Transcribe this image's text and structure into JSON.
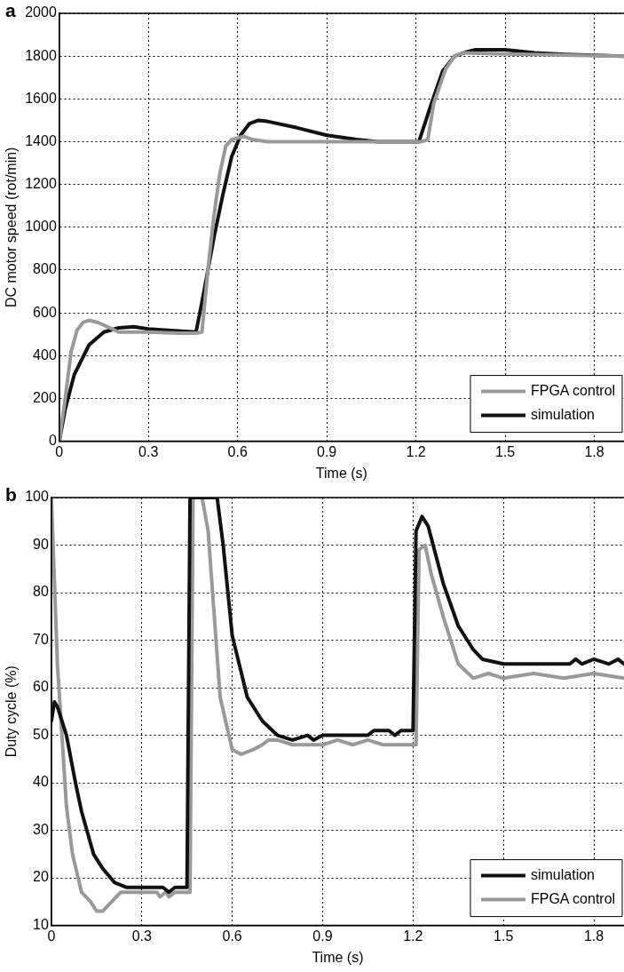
{
  "chart_data": [
    {
      "type": "line",
      "title": "a",
      "xlabel": "Time (s)",
      "ylabel": "DC motor speed (rot/min)",
      "xlim": [
        0,
        1.9
      ],
      "xticks": [
        0,
        0.3,
        0.6,
        0.9,
        1.2,
        1.5,
        1.8
      ],
      "ylim": [
        0,
        2000
      ],
      "yticks": [
        0,
        200,
        400,
        600,
        800,
        1000,
        1200,
        1400,
        1600,
        1800,
        2000
      ],
      "grid": true,
      "legend": "bottom right",
      "line_style": "solid",
      "marker": "none",
      "series": [
        {
          "name": "FPGA control",
          "color": "#999999",
          "x": [
            0,
            0.02,
            0.04,
            0.06,
            0.08,
            0.1,
            0.13,
            0.17,
            0.2,
            0.3,
            0.4,
            0.46,
            0.48,
            0.5,
            0.52,
            0.54,
            0.56,
            0.58,
            0.62,
            0.65,
            0.7,
            0.9,
            1.0,
            1.22,
            1.24,
            1.26,
            1.3,
            1.33,
            1.36,
            1.5,
            1.7,
            1.9
          ],
          "values": [
            0,
            200,
            420,
            520,
            555,
            565,
            555,
            530,
            510,
            510,
            505,
            505,
            510,
            800,
            1050,
            1250,
            1380,
            1410,
            1425,
            1410,
            1400,
            1400,
            1400,
            1400,
            1410,
            1580,
            1740,
            1800,
            1815,
            1810,
            1805,
            1800
          ]
        },
        {
          "name": "simulation",
          "color": "#111111",
          "x": [
            0,
            0.02,
            0.05,
            0.1,
            0.15,
            0.2,
            0.25,
            0.3,
            0.4,
            0.46,
            0.48,
            0.52,
            0.55,
            0.58,
            0.61,
            0.64,
            0.67,
            0.7,
            0.8,
            0.9,
            1.0,
            1.07,
            1.21,
            1.25,
            1.29,
            1.33,
            1.37,
            1.4,
            1.5,
            1.6,
            1.7,
            1.9
          ],
          "values": [
            0,
            150,
            310,
            450,
            510,
            530,
            535,
            525,
            515,
            510,
            650,
            950,
            1150,
            1330,
            1430,
            1485,
            1500,
            1495,
            1465,
            1430,
            1410,
            1400,
            1400,
            1570,
            1730,
            1800,
            1820,
            1830,
            1830,
            1815,
            1808,
            1800
          ]
        }
      ]
    },
    {
      "type": "line",
      "title": "b",
      "xlabel": "Time (s)",
      "ylabel": "Duty cycle (%)",
      "xlim": [
        0,
        1.9
      ],
      "xticks": [
        0,
        0.3,
        0.6,
        0.9,
        1.2,
        1.5,
        1.8
      ],
      "ylim": [
        10,
        100
      ],
      "yticks": [
        10,
        20,
        30,
        40,
        50,
        60,
        70,
        80,
        90,
        100
      ],
      "grid": true,
      "legend": "bottom right",
      "line_style": "solid",
      "marker": "none",
      "series": [
        {
          "name": "simulation",
          "color": "#111111",
          "x": [
            0,
            0.01,
            0.02,
            0.05,
            0.08,
            0.1,
            0.14,
            0.17,
            0.21,
            0.25,
            0.37,
            0.39,
            0.41,
            0.43,
            0.45,
            0.46,
            0.55,
            0.57,
            0.6,
            0.65,
            0.7,
            0.75,
            0.8,
            0.85,
            0.87,
            0.9,
            1.05,
            1.07,
            1.12,
            1.14,
            1.16,
            1.2,
            1.21,
            1.23,
            1.25,
            1.3,
            1.35,
            1.4,
            1.43,
            1.5,
            1.72,
            1.74,
            1.76,
            1.8,
            1.85,
            1.88,
            1.9
          ],
          "values": [
            53,
            57,
            56,
            50,
            40,
            34,
            25,
            22,
            19,
            18,
            18,
            17,
            18,
            18,
            18,
            100,
            100,
            90,
            71,
            58,
            53,
            50,
            49,
            50,
            49,
            50,
            50,
            51,
            51,
            50,
            51,
            51,
            93,
            96,
            94,
            82,
            73,
            68,
            66,
            65,
            65,
            66,
            65,
            66,
            65,
            66,
            65
          ]
        },
        {
          "name": "FPGA control",
          "color": "#999999",
          "x": [
            0,
            0.02,
            0.04,
            0.05,
            0.07,
            0.1,
            0.13,
            0.15,
            0.17,
            0.2,
            0.23,
            0.35,
            0.36,
            0.38,
            0.39,
            0.41,
            0.46,
            0.47,
            0.5,
            0.52,
            0.56,
            0.6,
            0.63,
            0.67,
            0.7,
            0.72,
            0.75,
            0.8,
            0.9,
            0.95,
            1.0,
            1.05,
            1.1,
            1.21,
            1.22,
            1.24,
            1.26,
            1.3,
            1.35,
            1.4,
            1.45,
            1.5,
            1.6,
            1.7,
            1.8,
            1.9
          ],
          "values": [
            100,
            65,
            45,
            35,
            25,
            17,
            15,
            13,
            13,
            15,
            17,
            17,
            16,
            17,
            16,
            17,
            17,
            100,
            100,
            93,
            58,
            47,
            46,
            47,
            48,
            49,
            49,
            48,
            48,
            49,
            48,
            49,
            48,
            48,
            89,
            90,
            84,
            75,
            65,
            62,
            63,
            62,
            63,
            62,
            63,
            62
          ]
        }
      ]
    }
  ]
}
